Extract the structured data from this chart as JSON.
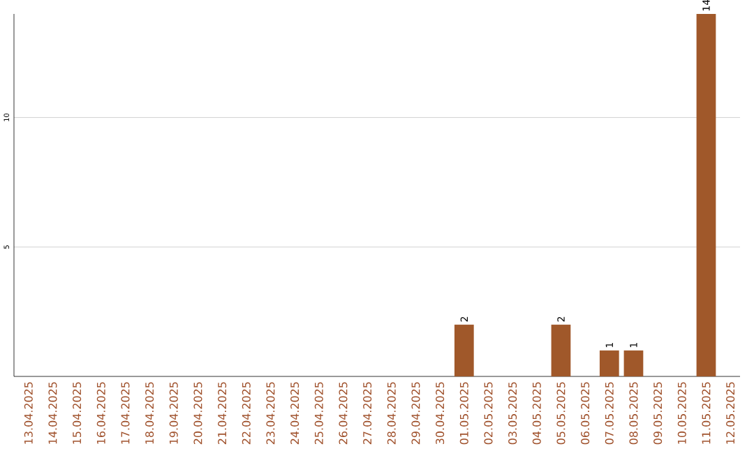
{
  "chart_data": {
    "type": "bar",
    "categories": [
      "13.04.2025",
      "14.04.2025",
      "15.04.2025",
      "16.04.2025",
      "17.04.2025",
      "18.04.2025",
      "19.04.2025",
      "20.04.2025",
      "21.04.2025",
      "22.04.2025",
      "23.04.2025",
      "24.04.2025",
      "25.04.2025",
      "26.04.2025",
      "27.04.2025",
      "28.04.2025",
      "29.04.2025",
      "30.04.2025",
      "01.05.2025",
      "02.05.2025",
      "03.05.2025",
      "04.05.2025",
      "05.05.2025",
      "06.05.2025",
      "07.05.2025",
      "08.05.2025",
      "09.05.2025",
      "10.05.2025",
      "11.05.2025",
      "12.05.2025"
    ],
    "values": [
      0,
      0,
      0,
      0,
      0,
      0,
      0,
      0,
      0,
      0,
      0,
      0,
      0,
      0,
      0,
      0,
      0,
      0,
      2,
      0,
      0,
      0,
      2,
      0,
      1,
      1,
      0,
      0,
      14,
      0
    ],
    "value_labels": [
      null,
      null,
      null,
      null,
      null,
      null,
      null,
      null,
      null,
      null,
      null,
      null,
      null,
      null,
      null,
      null,
      null,
      null,
      "2",
      null,
      null,
      null,
      "2",
      null,
      "1",
      "1",
      null,
      null,
      "14",
      null
    ],
    "color": "#a0582a",
    "ylim": [
      0,
      14
    ],
    "yticks": [
      5,
      10
    ],
    "grid": "y"
  }
}
